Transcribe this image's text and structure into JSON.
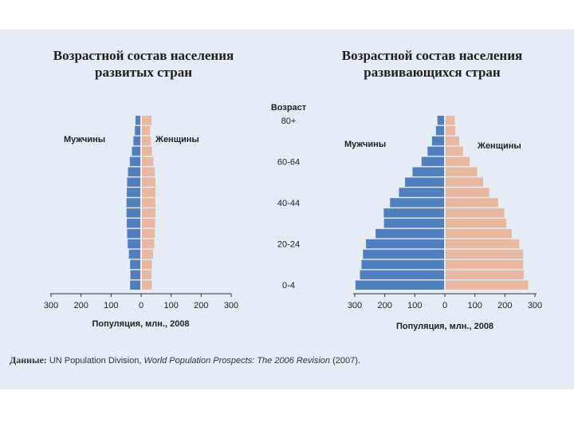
{
  "source": {
    "label": "Данные:",
    "text_plain": "UN Population Division, ",
    "text_italic": "World Population Prospects: The 2006 Revision",
    "text_year": " (2007)."
  },
  "age_axis_title": "Возраст",
  "colors": {
    "male": "#4f7fbf",
    "female": "#e8b9a0",
    "axis": "#333333"
  },
  "chart_data": [
    {
      "type": "bar",
      "orientation": "horizontal-pyramid",
      "title_line1": "Возрастной состав населения",
      "title_line2": "развитых стран",
      "male_label": "Мужчины",
      "female_label": "Женщины",
      "xlabel": "Популяция, млн., 2008",
      "xlim": [
        -300,
        300
      ],
      "xticks": [
        "300",
        "200",
        "100",
        "0",
        "100",
        "200",
        "300"
      ],
      "categories": [
        "0-4",
        "5-9",
        "10-14",
        "15-19",
        "20-24",
        "25-29",
        "30-34",
        "35-39",
        "40-44",
        "45-49",
        "50-54",
        "55-59",
        "60-64",
        "65-69",
        "70-74",
        "75-79",
        "80+"
      ],
      "series": [
        {
          "name": "Мужчины",
          "values": [
            34,
            33,
            34,
            38,
            42,
            44,
            45,
            46,
            46,
            45,
            44,
            41,
            35,
            28,
            23,
            18,
            16
          ]
        },
        {
          "name": "Женщины",
          "values": [
            33,
            32,
            33,
            37,
            41,
            43,
            44,
            45,
            45,
            45,
            45,
            43,
            38,
            33,
            30,
            27,
            32
          ]
        }
      ]
    },
    {
      "type": "bar",
      "orientation": "horizontal-pyramid",
      "title_line1": "Возрастной состав населения",
      "title_line2": "развивающихся стран",
      "male_label": "Мужчины",
      "female_label": "Женщины",
      "xlabel": "Популяция, млн., 2008",
      "xlim": [
        -300,
        300
      ],
      "xticks": [
        "300",
        "200",
        "100",
        "0",
        "100",
        "200",
        "300"
      ],
      "categories": [
        "0-4",
        "5-9",
        "10-14",
        "15-19",
        "20-24",
        "25-29",
        "30-34",
        "35-39",
        "40-44",
        "45-49",
        "50-54",
        "55-59",
        "60-64",
        "65-69",
        "70-74",
        "75-79",
        "80+"
      ],
      "age_tick_labels": {
        "0-4": "0-4",
        "20-24": "20-24",
        "40-44": "40-44",
        "60-64": "60-64",
        "80+": "80+"
      },
      "series": [
        {
          "name": "Мужчины",
          "values": [
            295,
            280,
            275,
            270,
            260,
            228,
            200,
            201,
            180,
            150,
            130,
            105,
            75,
            55,
            40,
            27,
            22
          ]
        },
        {
          "name": "Женщины",
          "values": [
            275,
            260,
            258,
            258,
            245,
            220,
            202,
            195,
            175,
            145,
            125,
            105,
            80,
            58,
            45,
            32,
            30
          ]
        }
      ]
    }
  ]
}
